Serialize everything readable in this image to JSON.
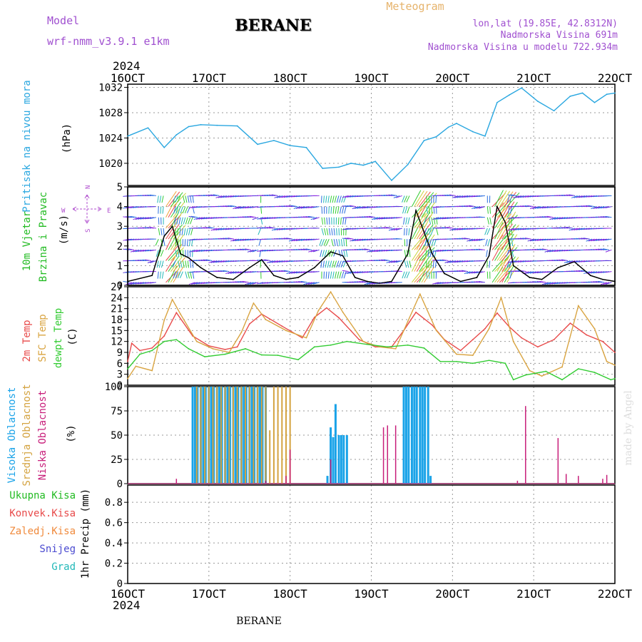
{
  "header": {
    "model_label": "Model",
    "model_name": "wrf-nmm_v3.9.1 e1km",
    "station": "BERANE",
    "product": "Meteogram",
    "lonlat": "lon,lat (19.85E, 42.8312N)",
    "elevation": "Nadmorska Visina 691m",
    "elevation_model": "Nadmorska Visina u modelu 722.934m"
  },
  "footer": {
    "station": "BERANE"
  },
  "credit": "made by Angel",
  "time_axis": {
    "year_top": "2024",
    "year_bottom": "2024",
    "dates": [
      "16OCT",
      "17OCT",
      "18OCT",
      "19OCT",
      "20OCT",
      "21OCT",
      "22OCT"
    ]
  },
  "colors": {
    "pressure": "#2aa7e0",
    "temp2m": "#e84a4a",
    "sfc": "#d9a441",
    "dewpt": "#33cc33",
    "high_cloud": "#1aa3e8",
    "mid_cloud": "#d4a340",
    "low_cloud": "#c81e7a",
    "wind_label": "#22bb22",
    "compass": "#b04fcf",
    "header_purple": "#a050d0",
    "header_orange": "#e6b36b"
  },
  "icons": {
    "compass": "wind-direction-compass"
  },
  "panels": {
    "pressure": {
      "labels": [
        "Pritisak na nivou mora"
      ],
      "unit": "(hPa)",
      "yticks": [
        1020,
        1024,
        1028,
        1032
      ]
    },
    "wind": {
      "labels": [
        "10m Vjetar",
        "Brzina i Pravac"
      ],
      "unit": "(m/s)",
      "yticks": [
        0,
        1,
        2,
        3,
        4,
        5
      ],
      "compass": {
        "n": "N",
        "w": "W",
        "e": "E",
        "s": "S"
      }
    },
    "temp": {
      "labels": [
        "2m Temp",
        "SFC Temp",
        "dewpt Temp"
      ],
      "unit": "(C)",
      "yticks": [
        0,
        3,
        6,
        9,
        12,
        15,
        18,
        21,
        24,
        27
      ]
    },
    "cloud": {
      "labels": [
        "Visoka Oblacnost",
        "Srednja Oblacnost",
        "Niska Oblacnost"
      ],
      "unit": "(%)",
      "yticks": [
        0,
        25,
        50,
        75,
        100
      ]
    },
    "precip": {
      "labels": [
        "Ukupna Kisa",
        "Konvek.Kisa",
        "Zaledj.Kisa",
        "Snijeg",
        "Grad"
      ],
      "unit": "1hr Precip (mm)",
      "yticks": [
        0,
        0.2,
        0.4,
        0.6,
        0.8
      ]
    }
  },
  "chart_data": [
    {
      "type": "line",
      "panel": "pressure",
      "ylabel": "(hPa)",
      "ylim": [
        1016.5,
        1032.5
      ],
      "xlim": [
        16,
        22
      ],
      "grid": true,
      "series": [
        {
          "name": "Pritisak na nivou mora",
          "color": "#2aa7e0",
          "x": [
            16.0,
            16.25,
            16.45,
            16.6,
            16.75,
            16.9,
            17.1,
            17.35,
            17.6,
            17.8,
            18.0,
            18.2,
            18.4,
            18.6,
            18.75,
            18.9,
            19.05,
            19.25,
            19.45,
            19.65,
            19.8,
            19.95,
            20.05,
            20.25,
            20.4,
            20.55,
            20.7,
            20.85,
            21.05,
            21.25,
            21.45,
            21.6,
            21.75,
            21.9,
            22.0
          ],
          "y": [
            1024.3,
            1025.6,
            1022.5,
            1024.5,
            1025.8,
            1026.1,
            1026.0,
            1025.9,
            1023.0,
            1023.6,
            1022.8,
            1022.5,
            1019.2,
            1019.4,
            1020.0,
            1019.7,
            1020.3,
            1017.3,
            1019.8,
            1023.6,
            1024.2,
            1025.7,
            1026.3,
            1025.0,
            1024.3,
            1029.6,
            1030.8,
            1031.9,
            1029.8,
            1028.3,
            1030.6,
            1031.1,
            1029.6,
            1030.9,
            1031.1
          ]
        }
      ]
    },
    {
      "type": "line",
      "panel": "wind",
      "ylabel": "(m/s)",
      "ylim": [
        0,
        5
      ],
      "xlim": [
        16,
        22
      ],
      "series": [
        {
          "name": "10m Vjetar Brzina",
          "color": "#000000",
          "x": [
            16.0,
            16.3,
            16.45,
            16.55,
            16.65,
            16.75,
            16.9,
            17.1,
            17.3,
            17.5,
            17.65,
            17.8,
            17.95,
            18.1,
            18.3,
            18.5,
            18.65,
            18.8,
            18.95,
            19.1,
            19.25,
            19.45,
            19.55,
            19.65,
            19.75,
            19.9,
            20.1,
            20.3,
            20.45,
            20.55,
            20.65,
            20.75,
            20.95,
            21.1,
            21.3,
            21.5,
            21.7,
            21.85,
            22.0
          ],
          "y": [
            0.2,
            0.5,
            2.5,
            3.0,
            1.6,
            1.4,
            0.9,
            0.4,
            0.3,
            0.9,
            1.3,
            0.5,
            0.3,
            0.4,
            0.9,
            1.7,
            1.5,
            0.4,
            0.2,
            0.1,
            0.2,
            1.6,
            3.8,
            2.7,
            1.6,
            0.6,
            0.2,
            0.4,
            1.5,
            4.0,
            3.2,
            1.0,
            0.4,
            0.3,
            0.9,
            1.2,
            0.5,
            0.3,
            0.2
          ]
        }
      ]
    },
    {
      "type": "line",
      "panel": "temp",
      "ylabel": "(C)",
      "ylim": [
        0,
        27
      ],
      "xlim": [
        16,
        22
      ],
      "series": [
        {
          "name": "2m Temp",
          "color": "#e84a4a",
          "x": [
            16.0,
            16.05,
            16.15,
            16.3,
            16.45,
            16.6,
            16.8,
            17.0,
            17.2,
            17.35,
            17.5,
            17.65,
            17.9,
            18.15,
            18.3,
            18.45,
            18.6,
            18.85,
            19.05,
            19.25,
            19.4,
            19.55,
            19.75,
            19.9,
            20.1,
            20.25,
            20.4,
            20.55,
            20.7,
            20.85,
            21.05,
            21.25,
            21.45,
            21.65,
            21.85,
            22.0
          ],
          "y": [
            6.5,
            11.5,
            9.5,
            10.2,
            13.5,
            19.9,
            13.5,
            10.8,
            9.8,
            10.5,
            16.8,
            19.5,
            16.2,
            13.0,
            18.6,
            21.2,
            18.5,
            12.5,
            10.5,
            10.5,
            15.0,
            20.0,
            16.5,
            12.5,
            9.5,
            12.5,
            15.5,
            19.8,
            16.0,
            13.0,
            10.5,
            12.5,
            17.0,
            13.8,
            12.0,
            9.0
          ]
        },
        {
          "name": "SFC Temp",
          "color": "#d9a441",
          "x": [
            16.0,
            16.1,
            16.3,
            16.45,
            16.55,
            16.65,
            16.85,
            17.05,
            17.25,
            17.4,
            17.55,
            17.7,
            17.95,
            18.2,
            18.35,
            18.5,
            18.65,
            18.9,
            19.1,
            19.3,
            19.45,
            19.6,
            19.8,
            20.05,
            20.25,
            20.45,
            20.6,
            20.75,
            20.95,
            21.1,
            21.35,
            21.55,
            21.75,
            21.9,
            22.0
          ],
          "y": [
            1.8,
            5.2,
            4.0,
            17.8,
            23.5,
            19.5,
            12.0,
            10.0,
            9.0,
            14.5,
            22.5,
            18.0,
            15.0,
            13.0,
            20.5,
            25.6,
            20.0,
            12.0,
            10.5,
            10.0,
            17.5,
            25.0,
            15.0,
            8.5,
            8.2,
            15.5,
            24.0,
            12.0,
            4.0,
            2.5,
            5.0,
            21.8,
            15.5,
            6.5,
            5.5
          ]
        },
        {
          "name": "dewpt Temp",
          "color": "#33cc33",
          "x": [
            16.0,
            16.15,
            16.3,
            16.45,
            16.6,
            16.75,
            16.95,
            17.2,
            17.45,
            17.65,
            17.85,
            18.1,
            18.3,
            18.5,
            18.7,
            18.95,
            19.2,
            19.45,
            19.65,
            19.85,
            20.05,
            20.25,
            20.45,
            20.65,
            20.75,
            20.9,
            21.15,
            21.35,
            21.55,
            21.75,
            21.95,
            22.0
          ],
          "y": [
            4.5,
            8.5,
            9.5,
            12.0,
            12.5,
            10.0,
            7.8,
            8.5,
            10.0,
            8.3,
            8.2,
            7.0,
            10.5,
            11.0,
            12.0,
            11.2,
            10.5,
            11.0,
            10.2,
            6.5,
            6.5,
            6.0,
            6.8,
            6.0,
            1.5,
            2.8,
            3.8,
            1.5,
            4.5,
            3.5,
            1.5,
            1.8
          ]
        }
      ]
    },
    {
      "type": "bar",
      "panel": "cloud",
      "ylabel": "(%)",
      "ylim": [
        0,
        100
      ],
      "xlim": [
        16,
        22
      ],
      "series": [
        {
          "name": "Visoka Oblacnost",
          "color": "#1aa3e8",
          "x": [
            16.8,
            16.83,
            16.86,
            16.9,
            16.93,
            16.96,
            17.0,
            17.03,
            17.06,
            17.1,
            17.13,
            17.16,
            17.2,
            17.23,
            17.26,
            17.3,
            17.33,
            17.36,
            17.4,
            17.43,
            17.46,
            17.5,
            17.53,
            17.56,
            17.6,
            17.63,
            17.66,
            17.7,
            18.46,
            18.5,
            18.53,
            18.56,
            18.6,
            18.63,
            18.66,
            18.7,
            19.4,
            19.43,
            19.46,
            19.5,
            19.53,
            19.56,
            19.6,
            19.63,
            19.66,
            19.7,
            19.73
          ],
          "y": [
            100,
            100,
            100,
            100,
            100,
            100,
            100,
            100,
            100,
            100,
            100,
            100,
            100,
            100,
            100,
            100,
            100,
            100,
            100,
            100,
            100,
            100,
            100,
            100,
            100,
            100,
            100,
            100,
            8,
            58,
            48,
            82,
            50,
            50,
            50,
            50,
            100,
            100,
            100,
            100,
            100,
            100,
            100,
            100,
            100,
            100,
            8
          ]
        },
        {
          "name": "Srednja Oblacnost",
          "color": "#d4a340",
          "x": [
            16.85,
            16.9,
            16.95,
            17.0,
            17.05,
            17.1,
            17.15,
            17.2,
            17.25,
            17.3,
            17.35,
            17.4,
            17.45,
            17.5,
            17.55,
            17.6,
            17.65,
            17.7,
            17.75,
            17.8,
            17.85,
            17.9,
            17.95,
            18.0
          ],
          "y": [
            100,
            100,
            100,
            100,
            100,
            100,
            100,
            100,
            100,
            100,
            100,
            100,
            100,
            100,
            100,
            100,
            100,
            100,
            55,
            100,
            100,
            100,
            100,
            100
          ]
        },
        {
          "name": "Niska Oblacnost",
          "color": "#c81e7a",
          "x": [
            16.6,
            17.7,
            17.95,
            18.0,
            18.5,
            19.15,
            19.2,
            19.3,
            20.8,
            20.9,
            21.3,
            21.4,
            21.55,
            21.85,
            21.9
          ],
          "y": [
            5,
            3,
            8,
            35,
            25,
            58,
            60,
            60,
            3,
            80,
            47,
            10,
            8,
            5,
            9
          ]
        }
      ]
    },
    {
      "type": "bar",
      "panel": "precip",
      "ylabel": "1hr Precip (mm)",
      "ylim": [
        0,
        0.97
      ],
      "xlim": [
        16,
        22
      ],
      "series": [
        {
          "name": "Ukupna Kisa",
          "color": "#22bb22",
          "x": [],
          "y": []
        },
        {
          "name": "Konvek.Kisa",
          "color": "#e84a4a",
          "x": [],
          "y": []
        },
        {
          "name": "Zaledj.Kisa",
          "color": "#f08a3c",
          "x": [],
          "y": []
        },
        {
          "name": "Snijeg",
          "color": "#4a4ad0",
          "x": [],
          "y": []
        },
        {
          "name": "Grad",
          "color": "#22b8b8",
          "x": [],
          "y": []
        }
      ]
    }
  ]
}
